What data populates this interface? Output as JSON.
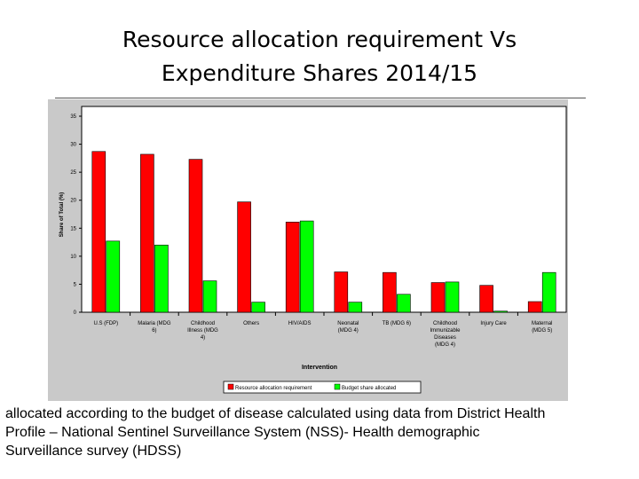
{
  "slide": {
    "title_line1": "Resource allocation requirement Vs",
    "title_line2": "Expenditure Shares 2014/15"
  },
  "chart_data": {
    "type": "bar",
    "categories": [
      [
        "U.S (FDP)"
      ],
      [
        "Malaria (MDG",
        "6)"
      ],
      [
        "Childhood",
        "Illness (MDG",
        "4)"
      ],
      [
        "Others"
      ],
      [
        "HIV/AIDS"
      ],
      [
        "Neonatal",
        "(MDG 4)"
      ],
      [
        "TB (MDG 6)"
      ],
      [
        "Childhood",
        "Immunizable",
        "Diseases",
        "(MDG 4)"
      ],
      [
        "Injury Care"
      ],
      [
        "Maternal",
        "(MDG 5)"
      ]
    ],
    "series": [
      {
        "name": "Resource allocation requirement",
        "color": "#ff0000",
        "values": [
          28.7,
          28.2,
          27.3,
          19.7,
          16.1,
          7.2,
          7.1,
          5.3,
          4.8,
          1.9
        ]
      },
      {
        "name": "Budget share allocated",
        "color": "#00ff00",
        "values": [
          12.7,
          12.0,
          5.6,
          1.8,
          16.3,
          1.8,
          3.2,
          5.4,
          0.2,
          7.1
        ]
      }
    ],
    "ylim": [
      0,
      35
    ],
    "yticks": [
      0,
      5,
      10,
      15,
      20,
      25,
      30,
      35
    ],
    "xlabel": "Intervention",
    "ylabel": "Share of Total (%)",
    "legend_position": "bottom",
    "grid": false
  },
  "caption": {
    "line1": "allocated according to the budget of disease calculated using data from District Health",
    "line2": "Profile – National Sentinel Surveillance System  (NSS)- Health demographic",
    "line3": "Surveillance survey (HDSS)"
  }
}
